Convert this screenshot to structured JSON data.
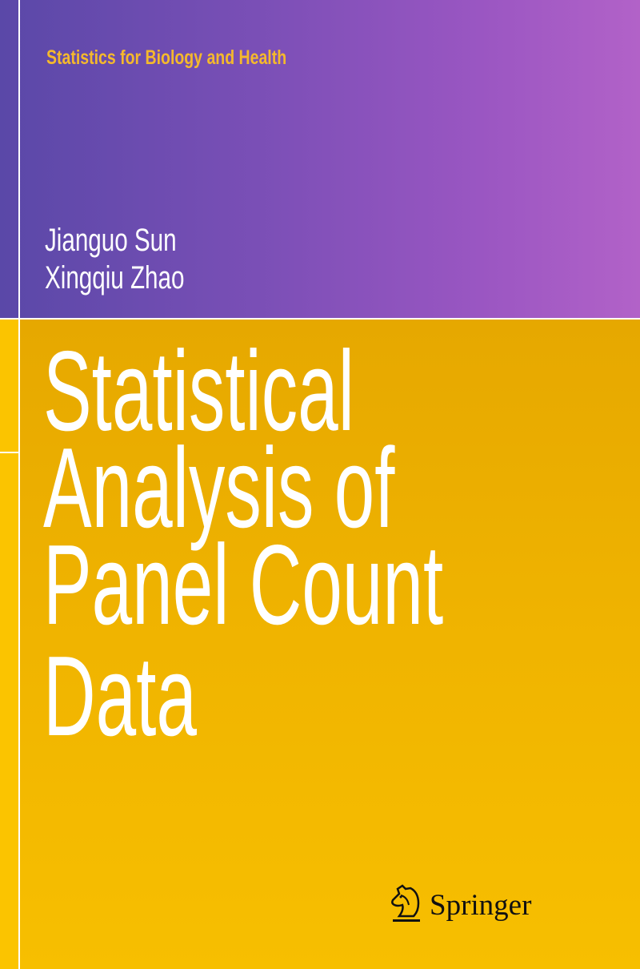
{
  "cover": {
    "series": "Statistics for Biology and Health",
    "authors": [
      "Jianguo Sun",
      "Xingqiu Zhao"
    ],
    "title_lines": [
      "Statistical",
      "Analysis of",
      "Panel Count",
      "Data"
    ],
    "publisher": "Springer",
    "publisher_logo_icon": "springer-horse-head-icon",
    "colors": {
      "top_left": "#5a48a8",
      "top_right": "#b262c8",
      "gold": "#f0b400",
      "series_text": "#f5b92c"
    }
  }
}
